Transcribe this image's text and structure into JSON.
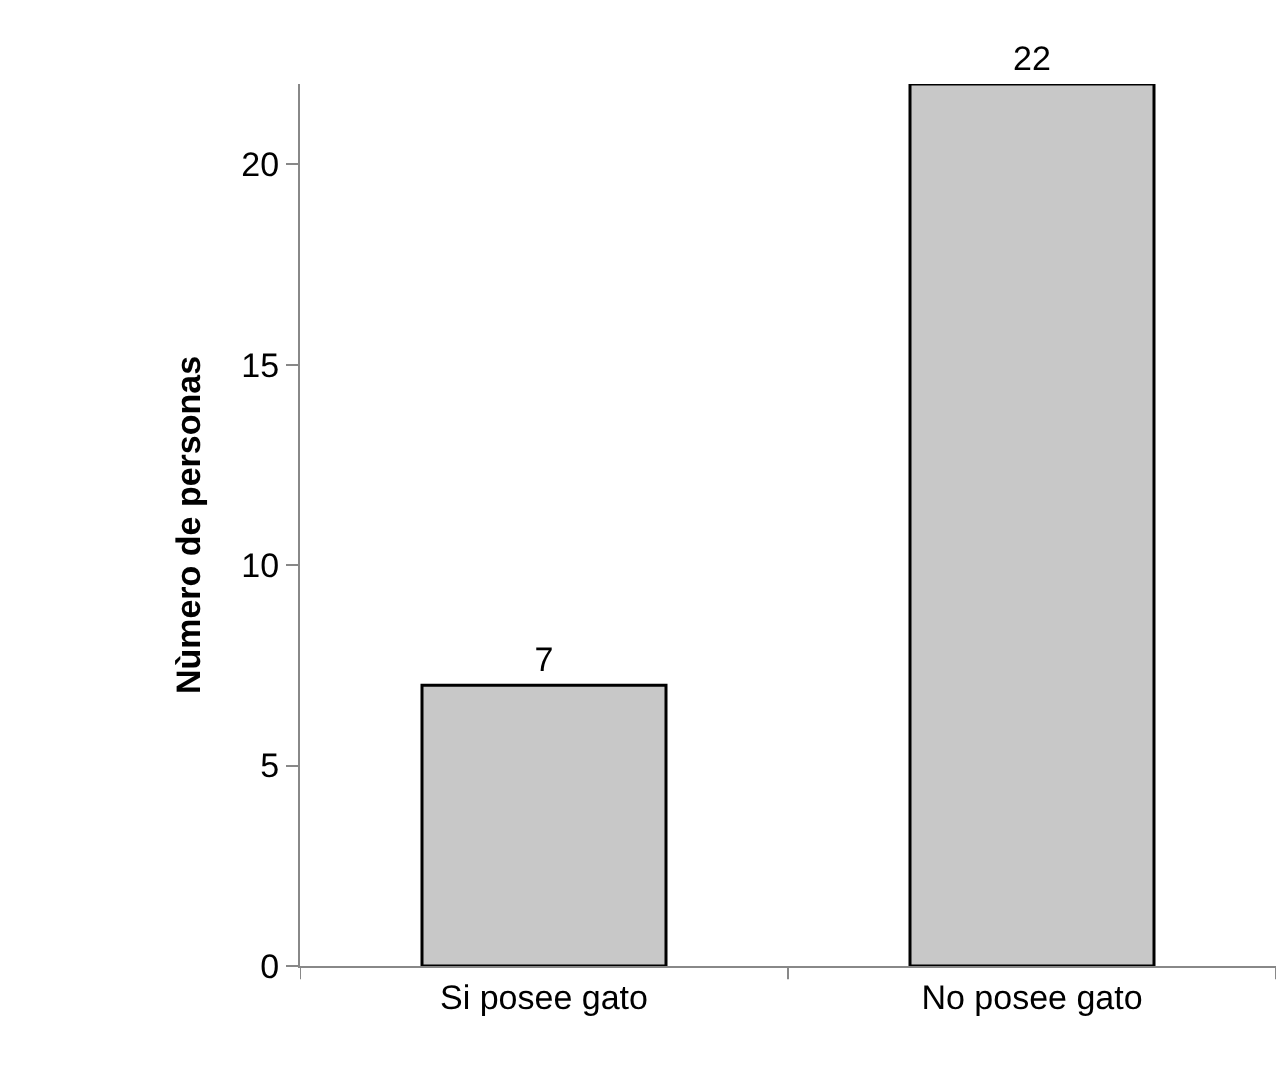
{
  "chart_data": {
    "type": "bar",
    "ylabel": "Nùmero de personas",
    "categories": [
      "Si posee gato",
      "No posee gato"
    ],
    "values": [
      7,
      22
    ],
    "color": "#c8c8c8",
    "ylim": [
      0,
      22
    ],
    "yticks": [
      0,
      5,
      10,
      15,
      20
    ],
    "data_labels": true,
    "legend": false
  }
}
